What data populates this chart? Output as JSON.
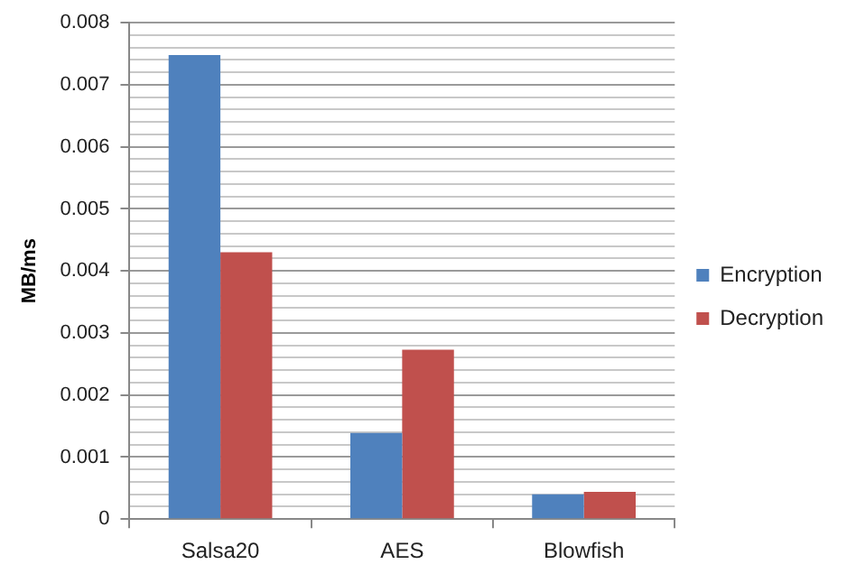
{
  "chart_data": {
    "type": "bar",
    "ylabel": "MB/ms",
    "categories": [
      "Salsa20",
      "AES",
      "Blowfish"
    ],
    "series": [
      {
        "name": "Encryption",
        "color": "#4f81bd",
        "values": [
          0.00748,
          0.00139,
          0.0004
        ]
      },
      {
        "name": "Decryption",
        "color": "#c0504d",
        "values": [
          0.0043,
          0.00273,
          0.00044
        ]
      }
    ],
    "ylim": [
      0,
      0.008
    ],
    "yticks": [
      0,
      {
        "value": 0.0002,
        "label": null
      },
      {
        "value": 0.0004,
        "label": null
      },
      {
        "value": 0.0006,
        "label": null
      },
      {
        "value": 0.0008,
        "label": null
      },
      0.001,
      {
        "value": 0.0012,
        "label": null
      },
      {
        "value": 0.0014,
        "label": null
      },
      {
        "value": 0.0016,
        "label": null
      },
      {
        "value": 0.0018,
        "label": null
      },
      0.002,
      {
        "value": 0.0022,
        "label": null
      },
      {
        "value": 0.0024,
        "label": null
      },
      {
        "value": 0.0026,
        "label": null
      },
      {
        "value": 0.0028,
        "label": null
      },
      0.003,
      {
        "value": 0.0032,
        "label": null
      },
      {
        "value": 0.0034,
        "label": null
      },
      {
        "value": 0.0036,
        "label": null
      },
      {
        "value": 0.0038,
        "label": null
      },
      0.004,
      {
        "value": 0.0042,
        "label": null
      },
      {
        "value": 0.0044,
        "label": null
      },
      {
        "value": 0.0046,
        "label": null
      },
      {
        "value": 0.0048,
        "label": null
      },
      0.005,
      {
        "value": 0.0052,
        "label": null
      },
      {
        "value": 0.0054,
        "label": null
      },
      {
        "value": 0.0056,
        "label": null
      },
      {
        "value": 0.0058,
        "label": null
      },
      0.006,
      {
        "value": 0.0062,
        "label": null
      },
      {
        "value": 0.0064,
        "label": null
      },
      {
        "value": 0.0066,
        "label": null
      },
      {
        "value": 0.0068,
        "label": null
      },
      0.007,
      {
        "value": 0.0072,
        "label": null
      },
      {
        "value": 0.0074,
        "label": null
      },
      {
        "value": 0.0076,
        "label": null
      },
      {
        "value": 0.0078,
        "label": null
      },
      0.008
    ],
    "grid": "y",
    "legend": "right"
  }
}
